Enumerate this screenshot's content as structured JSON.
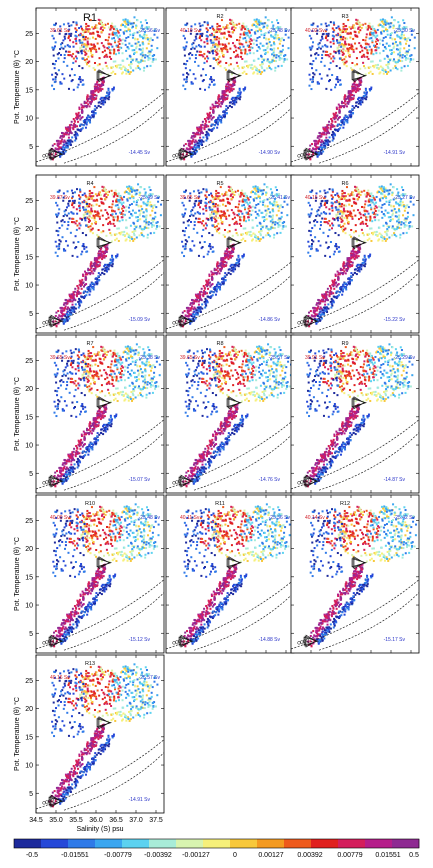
{
  "chart_data": {
    "type": "scatter",
    "xlabel": "Salinity (S) psu",
    "ylabel": "Pot. Temperature (θ) °C",
    "xlim": [
      34.5,
      37.7
    ],
    "ylim": [
      1.5,
      29.5
    ],
    "xticks": [
      "34.5",
      "35.0",
      "35.5",
      "36.0",
      "36.5",
      "37.0",
      "37.5"
    ],
    "xtick_values": [
      34.5,
      35.0,
      35.5,
      36.0,
      36.5,
      37.0,
      37.5
    ],
    "yticks": [
      "5",
      "10",
      "15",
      "20",
      "25"
    ],
    "ytick_values": [
      5,
      10,
      15,
      20,
      25
    ],
    "panels": [
      {
        "name": "R1",
        "left_value": "39.61 Sv",
        "right_top": "-25.56 Sv",
        "right_bottom": "-14.45 Sv"
      },
      {
        "name": "R2",
        "left_value": "40.10 Sv",
        "right_top": "-25.48 Sv",
        "right_bottom": "-14.90 Sv"
      },
      {
        "name": "R3",
        "left_value": "40.02 Sv",
        "right_top": "-25.50 Sv",
        "right_bottom": "-14.91 Sv"
      },
      {
        "name": "R4",
        "left_value": "39.87 Sv",
        "right_top": "-25.49 Sv",
        "right_bottom": "-15.09 Sv"
      },
      {
        "name": "R5",
        "left_value": "39.65 Sv",
        "right_top": "-25.41 Sv",
        "right_bottom": "-14.86 Sv"
      },
      {
        "name": "R6",
        "left_value": "40.15 Sv",
        "right_top": "-25.27 Sv",
        "right_bottom": "-15.22 Sv"
      },
      {
        "name": "R7",
        "left_value": "39.65 Sv",
        "right_top": "-25.38 Sv",
        "right_bottom": "-15.07 Sv"
      },
      {
        "name": "R8",
        "left_value": "39.65 Sv",
        "right_top": "-25.57 Sv",
        "right_bottom": "-14.76 Sv"
      },
      {
        "name": "R9",
        "left_value": "39.91 Sv",
        "right_top": "-25.29 Sv",
        "right_bottom": "-14.87 Sv"
      },
      {
        "name": "R10",
        "left_value": "40.00 Sv",
        "right_top": "-25.48 Sv",
        "right_bottom": "-15.12 Sv"
      },
      {
        "name": "R11",
        "left_value": "40.11 Sv",
        "right_top": "-25.56 Sv",
        "right_bottom": "-14.88 Sv"
      },
      {
        "name": "R12",
        "left_value": "40.14 Sv",
        "right_top": "-25.42 Sv",
        "right_bottom": "-15.17 Sv"
      },
      {
        "name": "R13",
        "left_value": "40.16 Sv",
        "right_top": "-25.57 Sv",
        "right_bottom": "-14.91 Sv"
      }
    ],
    "colorbar": {
      "ticks": [
        "-0.5",
        "-0.01551",
        "-0.00779",
        "-0.00392",
        "-0.00127",
        "0",
        "0.00127",
        "0.00392",
        "0.00779",
        "0.01551",
        "0.5"
      ],
      "colors": [
        "#1d2a9c",
        "#2548d8",
        "#2f7ae8",
        "#3aa6f0",
        "#5cd2f0",
        "#a8ecd8",
        "#d8f4b0",
        "#f6f07a",
        "#f8c83a",
        "#f49a20",
        "#ee5a1c",
        "#e0201e",
        "#d41e5c",
        "#b51e8a",
        "#8e2a92"
      ]
    }
  }
}
